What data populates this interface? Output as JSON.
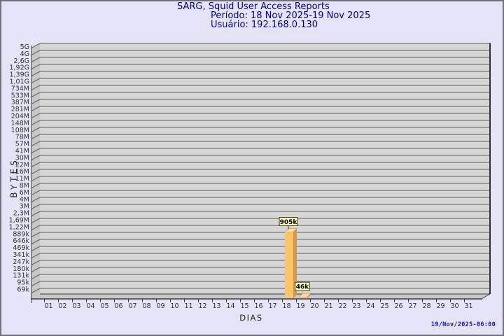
{
  "chart_data": {
    "type": "bar",
    "title": "SARG, Squid User Access Reports",
    "period": "Período: 18 Nov 2025-19 Nov 2025",
    "user": "Usuário: 192.168.0.130",
    "xlabel": "DIAS",
    "ylabel": "BYTES",
    "y_scale": "log",
    "ylim_bytes": [
      50000,
      5000000000
    ],
    "legend": "none",
    "grid": "horizontal",
    "y_tick_labels": [
      "5G",
      "4G",
      "2,6G",
      "1,92G",
      "1,39G",
      "1,01G",
      "734M",
      "533M",
      "387M",
      "281M",
      "204M",
      "148M",
      "108M",
      "78M",
      "57M",
      "41M",
      "30M",
      "22M",
      "16M",
      "11M",
      "8M",
      "6M",
      "4M",
      "3M",
      "2,3M",
      "1,69M",
      "1,22M",
      "889k",
      "646k",
      "469k",
      "341k",
      "247k",
      "180k",
      "131k",
      "95k",
      "69k"
    ],
    "x_categories": [
      "01",
      "02",
      "03",
      "04",
      "05",
      "06",
      "07",
      "08",
      "09",
      "10",
      "11",
      "12",
      "13",
      "14",
      "15",
      "16",
      "17",
      "18",
      "19",
      "20",
      "21",
      "22",
      "23",
      "24",
      "25",
      "26",
      "27",
      "28",
      "29",
      "30",
      "31"
    ],
    "bars": [
      {
        "day": "18",
        "label": "905k",
        "value_bytes": 905000
      },
      {
        "day": "19",
        "label": "46k",
        "value_bytes": 46000
      }
    ],
    "colors": {
      "background": "#e4e4f6",
      "title": "#000099",
      "plot_bg": "#d6d6d6",
      "wall": "#c8c8c8",
      "grid": "#5f5f5f",
      "axis": "#3c3c3c",
      "bar_front": "#fdc468",
      "bar_side": "#d79a3d",
      "bar_top": "#f7da9a",
      "callout_bg": "#ffffc4",
      "callout_border": "#3d3d10",
      "timestamp": "#1414c8"
    }
  },
  "footer": {
    "generated": "19/Nov/2025-06:00"
  }
}
